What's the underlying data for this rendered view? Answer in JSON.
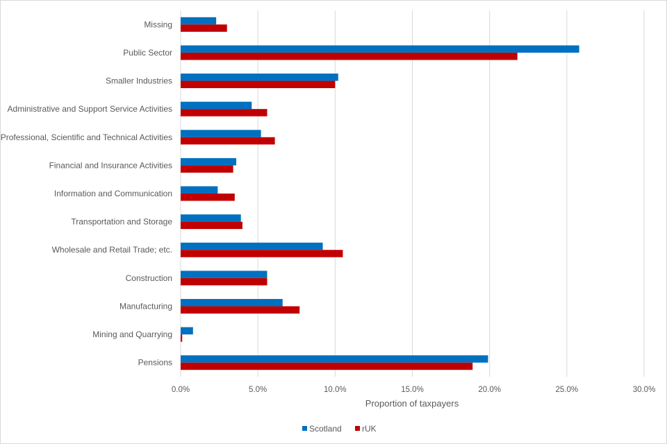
{
  "chart_data": {
    "type": "bar",
    "orientation": "horizontal",
    "title": "",
    "xlabel": "Proportion of taxpayers",
    "ylabel": "",
    "xlim": [
      0,
      0.3
    ],
    "x_ticks": [
      0,
      0.05,
      0.1,
      0.15,
      0.2,
      0.25,
      0.3
    ],
    "x_tick_labels": [
      "0.0%",
      "5.0%",
      "10.0%",
      "15.0%",
      "20.0%",
      "25.0%",
      "30.0%"
    ],
    "grid": "vertical",
    "legend_position": "bottom",
    "categories": [
      "Missing",
      "Public Sector",
      "Smaller Industries",
      "Administrative and Support Service Activities",
      "Professional, Scientific and Technical Activities",
      "Financial and Insurance Activities",
      "Information and Communication",
      "Transportation and Storage",
      "Wholesale and Retail Trade; etc.",
      "Construction",
      "Manufacturing",
      "Mining and Quarrying",
      "Pensions"
    ],
    "series": [
      {
        "name": "Scotland",
        "color": "#0070C0",
        "values": [
          0.023,
          0.258,
          0.102,
          0.046,
          0.052,
          0.036,
          0.024,
          0.039,
          0.092,
          0.056,
          0.066,
          0.008,
          0.199
        ]
      },
      {
        "name": "rUK",
        "color": "#C00000",
        "values": [
          0.03,
          0.218,
          0.1,
          0.056,
          0.061,
          0.034,
          0.035,
          0.04,
          0.105,
          0.056,
          0.077,
          0.001,
          0.189
        ]
      }
    ]
  }
}
